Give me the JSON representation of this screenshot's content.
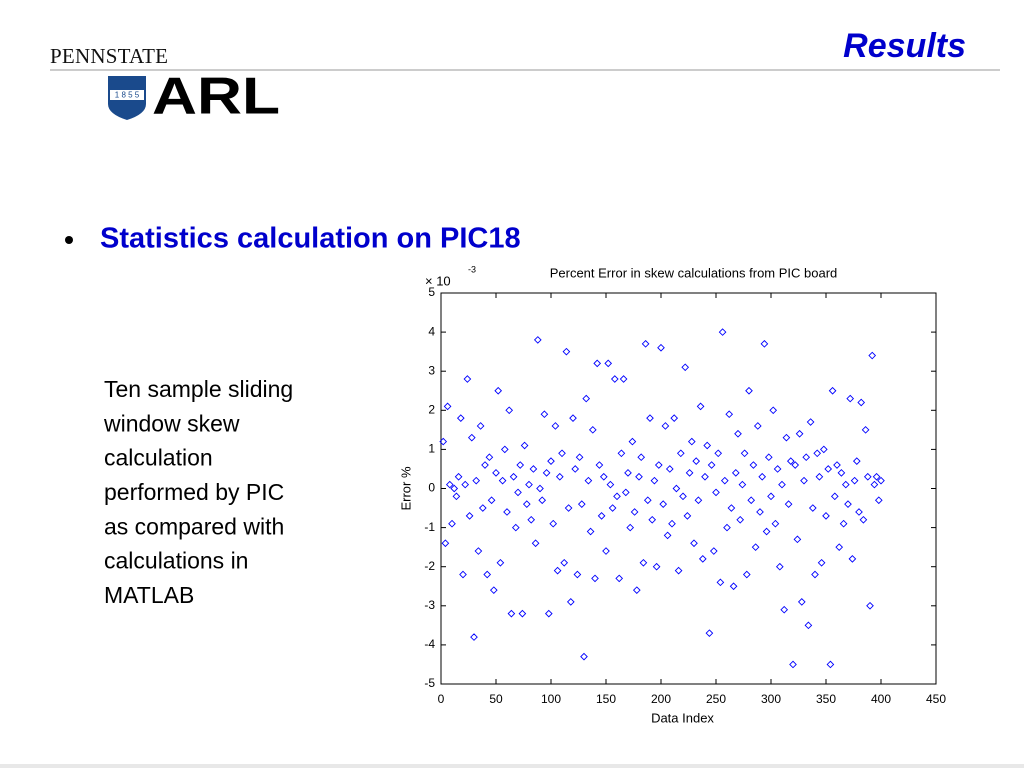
{
  "header": {
    "title": "Results",
    "logo_top": "PENNSTATE",
    "logo_year": "1 8 5 5",
    "logo_main": "ARL"
  },
  "bullet": "Statistics calculation on PIC18",
  "body_lines": [
    "Ten sample sliding",
    "window skew",
    "calculation",
    "performed by PIC",
    "as compared with",
    "calculations in",
    "MATLAB"
  ],
  "chart_data": {
    "type": "scatter",
    "title": "Percent Error in skew calculations from PIC board",
    "xlabel": "Data Index",
    "ylabel": "Error %",
    "y_scale_label": "× 10",
    "y_scale_exponent": "-3",
    "color": "#0000ff",
    "marker": "diamond",
    "xlim": [
      0,
      450
    ],
    "xticks": [
      0,
      50,
      100,
      150,
      200,
      250,
      300,
      350,
      400,
      450
    ],
    "ylim": [
      -5,
      5
    ],
    "yticks": [
      -5,
      -4,
      -3,
      -2,
      -1,
      0,
      1,
      2,
      3,
      4,
      5
    ],
    "x": [
      2,
      4,
      6,
      8,
      10,
      12,
      14,
      16,
      18,
      20,
      22,
      24,
      26,
      28,
      30,
      32,
      34,
      36,
      38,
      40,
      42,
      44,
      46,
      48,
      50,
      52,
      54,
      56,
      58,
      60,
      62,
      64,
      66,
      68,
      70,
      72,
      74,
      76,
      78,
      80,
      82,
      84,
      86,
      88,
      90,
      92,
      94,
      96,
      98,
      100,
      102,
      104,
      106,
      108,
      110,
      112,
      114,
      116,
      118,
      120,
      122,
      124,
      126,
      128,
      130,
      132,
      134,
      136,
      138,
      140,
      142,
      144,
      146,
      148,
      150,
      152,
      154,
      156,
      158,
      160,
      162,
      164,
      166,
      168,
      170,
      172,
      174,
      176,
      178,
      180,
      182,
      184,
      186,
      188,
      190,
      192,
      194,
      196,
      198,
      200,
      202,
      204,
      206,
      208,
      210,
      212,
      214,
      216,
      218,
      220,
      222,
      224,
      226,
      228,
      230,
      232,
      234,
      236,
      238,
      240,
      242,
      244,
      246,
      248,
      250,
      252,
      254,
      256,
      258,
      260,
      262,
      264,
      266,
      268,
      270,
      272,
      274,
      276,
      278,
      280,
      282,
      284,
      286,
      288,
      290,
      292,
      294,
      296,
      298,
      300,
      302,
      304,
      306,
      308,
      310,
      312,
      314,
      316,
      318,
      320,
      322,
      324,
      326,
      328,
      330,
      332,
      334,
      336,
      338,
      340,
      342,
      344,
      346,
      348,
      350,
      352,
      354,
      356,
      358,
      360,
      362,
      364,
      366,
      368,
      370,
      372,
      374,
      376,
      378,
      380,
      382,
      384,
      386,
      388,
      390,
      392,
      394,
      396,
      398,
      400
    ],
    "values": [
      1.2,
      -1.4,
      2.1,
      0.1,
      -0.9,
      0.0,
      -0.2,
      0.3,
      1.8,
      -2.2,
      0.1,
      2.8,
      -0.7,
      1.3,
      -3.8,
      0.2,
      -1.6,
      1.6,
      -0.5,
      0.6,
      -2.2,
      0.8,
      -0.3,
      -2.6,
      0.4,
      2.5,
      -1.9,
      0.2,
      1.0,
      -0.6,
      2.0,
      -3.2,
      0.3,
      -1.0,
      -0.1,
      0.6,
      -3.2,
      1.1,
      -0.4,
      0.1,
      -0.8,
      0.5,
      -1.4,
      3.8,
      0.0,
      -0.3,
      1.9,
      0.4,
      -3.2,
      0.7,
      -0.9,
      1.6,
      -2.1,
      0.3,
      0.9,
      -1.9,
      3.5,
      -0.5,
      -2.9,
      1.8,
      0.5,
      -2.2,
      0.8,
      -0.4,
      -4.3,
      2.3,
      0.2,
      -1.1,
      1.5,
      -2.3,
      3.2,
      0.6,
      -0.7,
      0.3,
      -1.6,
      3.2,
      0.1,
      -0.5,
      2.8,
      -0.2,
      -2.3,
      0.9,
      2.8,
      -0.1,
      0.4,
      -1.0,
      1.2,
      -0.6,
      -2.6,
      0.3,
      0.8,
      -1.9,
      3.7,
      -0.3,
      1.8,
      -0.8,
      0.2,
      -2.0,
      0.6,
      3.6,
      -0.4,
      1.6,
      -1.2,
      0.5,
      -0.9,
      1.8,
      0.0,
      -2.1,
      0.9,
      -0.2,
      3.1,
      -0.7,
      0.4,
      1.2,
      -1.4,
      0.7,
      -0.3,
      2.1,
      -1.8,
      0.3,
      1.1,
      -3.7,
      0.6,
      -1.6,
      -0.1,
      0.9,
      -2.4,
      4.0,
      0.2,
      -1.0,
      1.9,
      -0.5,
      -2.5,
      0.4,
      1.4,
      -0.8,
      0.1,
      0.9,
      -2.2,
      2.5,
      -0.3,
      0.6,
      -1.5,
      1.6,
      -0.6,
      0.3,
      3.7,
      -1.1,
      0.8,
      -0.2,
      2.0,
      -0.9,
      0.5,
      -2.0,
      0.1,
      -3.1,
      1.3,
      -0.4,
      0.7,
      -4.5,
      0.6,
      -1.3,
      1.4,
      -2.9,
      0.2,
      0.8,
      -3.5,
      1.7,
      -0.5,
      -2.2,
      0.9,
      0.3,
      -1.9,
      1.0,
      -0.7,
      0.5,
      -4.5,
      2.5,
      -0.2,
      0.6,
      -1.5,
      0.4,
      -0.9,
      0.1,
      -0.4,
      2.3,
      -1.8,
      0.2,
      0.7,
      -0.6,
      2.2,
      -0.8,
      1.5,
      0.3,
      -3.0,
      3.4,
      0.1,
      0.3,
      -0.3,
      0.2
    ]
  }
}
